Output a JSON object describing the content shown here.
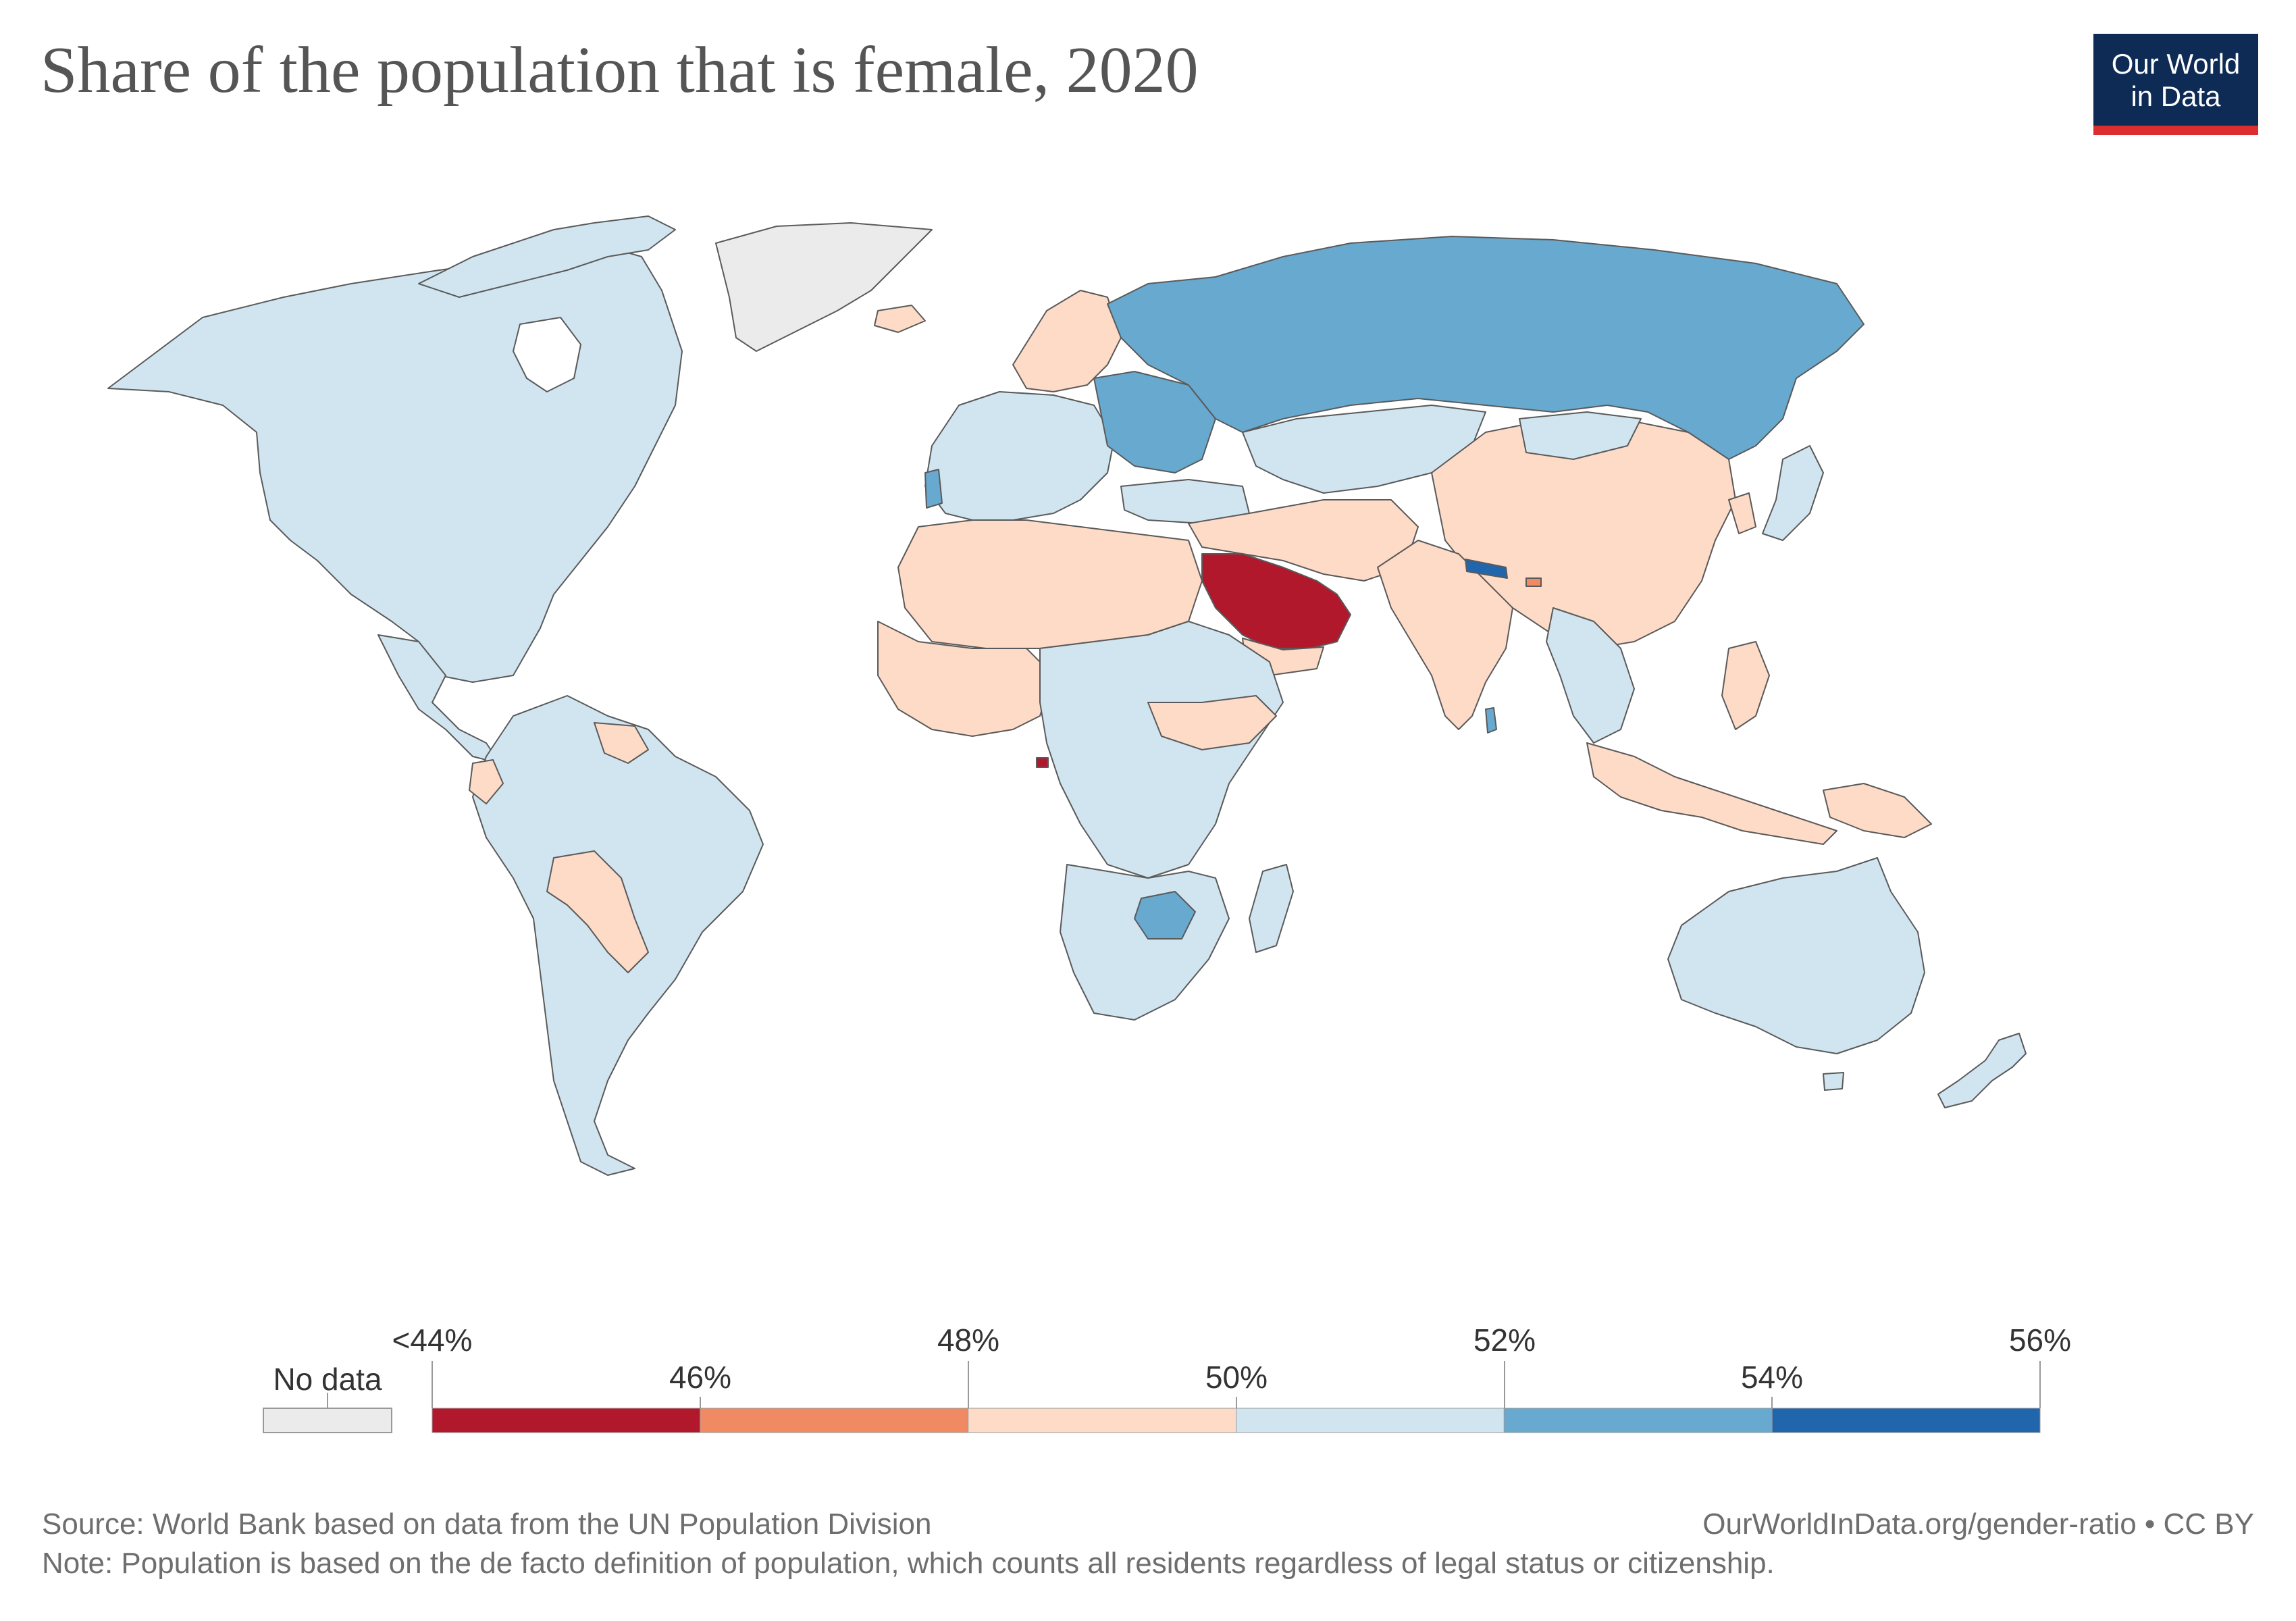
{
  "title": "Share of the population that is female, 2020",
  "logo": {
    "line1": "Our World",
    "line2": "in Data",
    "bg_color": "#0d2b54",
    "accent_color": "#dc2d2f"
  },
  "legend": {
    "no_data_label": "No data",
    "no_data_color": "#ebebeb",
    "top_ticks": [
      "<44%",
      "48%",
      "52%",
      "56%"
    ],
    "bottom_ticks": [
      "46%",
      "50%",
      "54%"
    ],
    "bins": [
      {
        "range": "<44–46%",
        "color": "#b2182b"
      },
      {
        "range": "46–48%",
        "color": "#ef8a62"
      },
      {
        "range": "48–50%",
        "color": "#fddbc7"
      },
      {
        "range": "50–52%",
        "color": "#d1e5f0"
      },
      {
        "range": "52–54%",
        "color": "#67a9cf"
      },
      {
        "range": "54–56%",
        "color": "#2166ac"
      }
    ]
  },
  "map_data": {
    "type": "choropleth",
    "variable": "Share of the population that is female",
    "year": 2020,
    "regions": [
      {
        "region": "North America",
        "bin": "50–52%"
      },
      {
        "region": "South America",
        "bin": "50–52%"
      },
      {
        "region": "Bolivia / Paraguay",
        "bin": "48–50%"
      },
      {
        "region": "Guyana / Suriname",
        "bin": "48–50%"
      },
      {
        "region": "Ecuador",
        "bin": "48–50%"
      },
      {
        "region": "Greenland",
        "bin": "No data"
      },
      {
        "region": "Russia",
        "bin": "52–54%"
      },
      {
        "region": "Ukraine / Belarus / Baltics",
        "bin": "52–54%"
      },
      {
        "region": "Scandinavia",
        "bin": "48–50%"
      },
      {
        "region": "Western Europe",
        "bin": "50–52%"
      },
      {
        "region": "Kazakhstan",
        "bin": "50–52%"
      },
      {
        "region": "China / Mongolia",
        "bin": "48–50%"
      },
      {
        "region": "India / Pakistan",
        "bin": "48–50%"
      },
      {
        "region": "Nepal",
        "bin": "54–56%"
      },
      {
        "region": "Bhutan",
        "bin": "46–48%"
      },
      {
        "region": "Saudi Arabia / Gulf states",
        "bin": "<44–46%"
      },
      {
        "region": "Yemen",
        "bin": "48–50%"
      },
      {
        "region": "North Africa",
        "bin": "48–50%"
      },
      {
        "region": "West Africa",
        "bin": "48–50%"
      },
      {
        "region": "Central & East Africa",
        "bin": "50–52%"
      },
      {
        "region": "Equatorial Guinea",
        "bin": "<44–46%"
      },
      {
        "region": "Zimbabwe",
        "bin": "52–54%"
      },
      {
        "region": "Southern Africa",
        "bin": "50–52%"
      },
      {
        "region": "Madagascar",
        "bin": "50–52%"
      },
      {
        "region": "Southeast Asia (Indonesia, Malaysia, Philippines)",
        "bin": "48–50%"
      },
      {
        "region": "Vietnam / Thailand",
        "bin": "50–52%"
      },
      {
        "region": "Japan / Korea",
        "bin": "50–52%"
      },
      {
        "region": "Sri Lanka",
        "bin": "52–54%"
      },
      {
        "region": "Papua New Guinea",
        "bin": "48–50%"
      },
      {
        "region": "Australia",
        "bin": "50–52%"
      },
      {
        "region": "New Zealand",
        "bin": "50–52%"
      },
      {
        "region": "Iceland",
        "bin": "48–50%"
      },
      {
        "region": "Portugal",
        "bin": "52–54%"
      }
    ]
  },
  "footer": {
    "source": "Source: World Bank based on data from the UN Population Division",
    "url": "OurWorldInData.org/gender-ratio • CC BY",
    "note": "Note: Population is based on the de facto definition of population, which counts all residents regardless of legal status or citizenship."
  }
}
